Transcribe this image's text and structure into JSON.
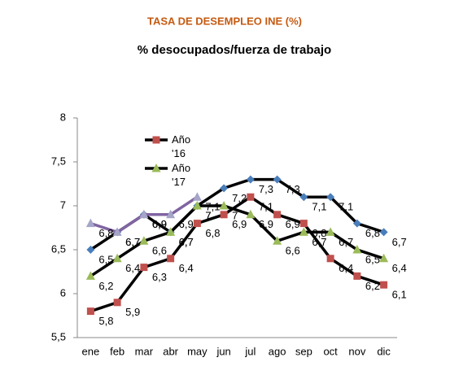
{
  "chart_data": {
    "type": "line",
    "title": "TASA DE DESEMPLEO INE (%)",
    "subtitle": "% desocupados/fuerza de trabajo",
    "categories": [
      "ene",
      "feb",
      "mar",
      "abr",
      "may",
      "jun",
      "jul",
      "ago",
      "sep",
      "oct",
      "nov",
      "dic"
    ],
    "ylim": [
      5.5,
      8
    ],
    "yticks": [
      {
        "value": 5.5,
        "label": "5,5"
      },
      6,
      {
        "value": 6.5,
        "label": "6,5"
      },
      7,
      {
        "value": 7.5,
        "label": "7,5"
      },
      8
    ],
    "series": [
      {
        "color": "#4a7ebb",
        "line_color": "#000000",
        "marker": "diamond",
        "values": [
          6.5,
          6.7,
          6.9,
          6.7,
          7.0,
          7.2,
          7.3,
          7.3,
          7.1,
          7.1,
          6.8,
          6.7
        ],
        "value_labels": [
          "6,5",
          "6,7",
          "6,9",
          "6,7",
          "7",
          "7,2",
          "7,3",
          "7,3",
          "7,1",
          "7,1",
          "6,8",
          "6,7"
        ]
      },
      {
        "name": "Año '16",
        "color": "#c0504d",
        "line_color": "#000000",
        "marker": "square",
        "values": [
          5.8,
          5.9,
          6.3,
          6.4,
          6.8,
          6.9,
          7.1,
          6.9,
          6.8,
          6.4,
          6.2,
          6.1
        ],
        "value_labels": [
          "5,8",
          "5,9",
          "6,3",
          "6,4",
          "6,8",
          "6,9",
          "7,1",
          "6,9",
          "6,8",
          "6,4",
          "6,2",
          "6,1"
        ]
      },
      {
        "name": "Año '17",
        "color": "#9bbb59",
        "line_color": "#000000",
        "marker": "triangle",
        "values": [
          6.2,
          6.4,
          6.6,
          6.7,
          7.0,
          7.0,
          6.9,
          6.6,
          6.7,
          6.7,
          6.5,
          6.4
        ],
        "value_labels": [
          "6,2",
          "6,4",
          "6,6",
          "6,7",
          "7",
          "7",
          "6,9",
          "6,6",
          "6,7",
          "6,7",
          "6,5",
          "6,4"
        ]
      },
      {
        "color": "#a5a5c8",
        "line_color": "#8064a2",
        "marker": "triangle",
        "values": [
          6.8,
          6.7,
          6.9,
          6.9,
          7.1,
          null,
          null,
          null,
          null,
          null,
          null,
          null
        ],
        "value_labels": [
          "6,8",
          "6,7",
          "6,9",
          "6,9",
          "7,1",
          null,
          null,
          null,
          null,
          null,
          null,
          null
        ]
      }
    ]
  }
}
